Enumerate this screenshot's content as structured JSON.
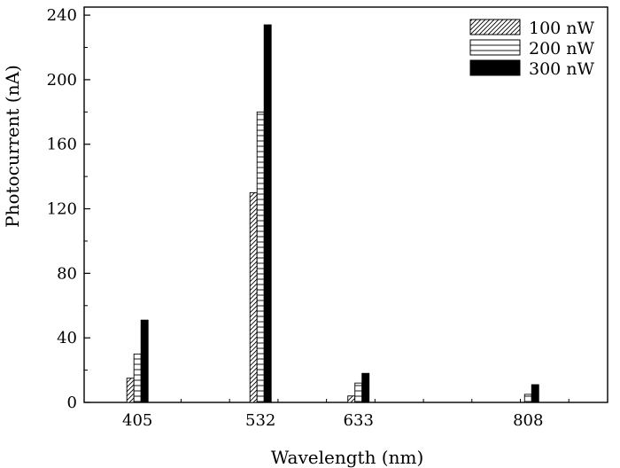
{
  "chart_data": {
    "type": "bar",
    "title": "",
    "xlabel": "Wavelength (nm)",
    "ylabel": "Photocurrent (nA)",
    "categories": [
      "405",
      "532",
      "633",
      "808"
    ],
    "x_positions": [
      405,
      532,
      633,
      808
    ],
    "xlim": [
      350,
      890
    ],
    "ylim": [
      0,
      245
    ],
    "yticks": [
      0,
      40,
      80,
      120,
      160,
      200,
      240
    ],
    "series": [
      {
        "name": "100 nW",
        "pattern": "diagonal-hatch",
        "values": [
          15,
          130,
          4,
          0
        ]
      },
      {
        "name": "200 nW",
        "pattern": "horizontal-lines",
        "values": [
          30,
          180,
          12,
          5
        ]
      },
      {
        "name": "300 nW",
        "pattern": "solid",
        "values": [
          51,
          234,
          18,
          11
        ]
      }
    ],
    "grid": false,
    "legend_position": "top-right",
    "colors": {
      "ink": "#000000",
      "background": "#ffffff"
    }
  }
}
